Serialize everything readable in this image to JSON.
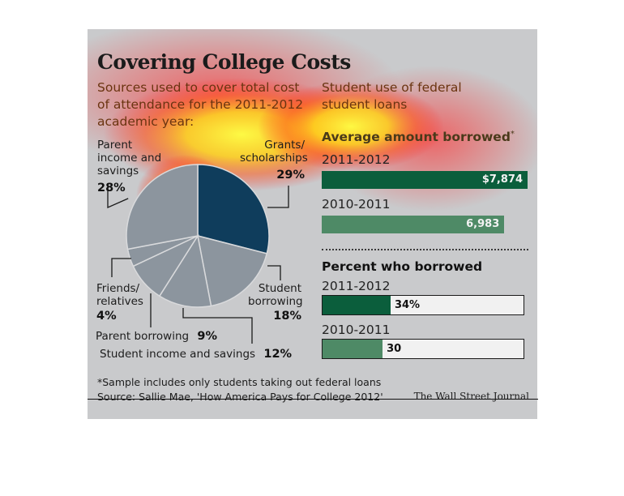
{
  "chart_title": "Covering College Costs",
  "pie_subtitle": "Sources used to cover total cost of attendance for the 2011-2012 academic year:",
  "right_title": "Student use of federal student loans",
  "avg_heading": "Average amount borrowed",
  "avg_footnote_mark": "*",
  "pct_heading": "Percent who borrowed",
  "footnote": "*Sample includes only students taking out federal loans",
  "source": "Source: Sallie Mae, 'How America Pays for College 2012'",
  "credit": "The Wall Street Journal",
  "colors": {
    "background": "#c9cacc",
    "navy": "#0f3d5c",
    "gray_slices": "#8c959e",
    "dark_green": "#0b5e3c",
    "light_green": "#4e8a66",
    "brown_text": "#6a3410"
  },
  "chart_data": [
    {
      "type": "pie",
      "title": "Sources used to cover total cost of attendance for the 2011-2012 academic year:",
      "slices": [
        {
          "label": "Grants/ scholarships",
          "value": 29,
          "display": "29%"
        },
        {
          "label": "Student borrowing",
          "value": 18,
          "display": "18%"
        },
        {
          "label": "Student income and savings",
          "value": 12,
          "display": "12%"
        },
        {
          "label": "Parent borrowing",
          "value": 9,
          "display": "9%"
        },
        {
          "label": "Friends/ relatives",
          "value": 4,
          "display": "4%"
        },
        {
          "label": "Parent income and savings",
          "value": 28,
          "display": "28%"
        }
      ]
    },
    {
      "type": "bar",
      "title": "Average amount borrowed",
      "categories": [
        "2011-2012",
        "2010-2011"
      ],
      "values": [
        7874,
        6983
      ],
      "display": [
        "$7,874",
        "6,983"
      ],
      "xlim": [
        0,
        7874
      ]
    },
    {
      "type": "bar",
      "title": "Percent who borrowed",
      "categories": [
        "2011-2012",
        "2010-2011"
      ],
      "values": [
        34,
        30
      ],
      "display": [
        "34%",
        "30"
      ],
      "xlim": [
        0,
        100
      ]
    }
  ]
}
